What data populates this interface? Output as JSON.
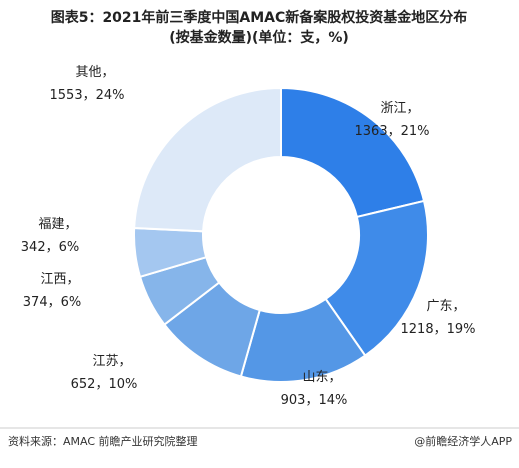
{
  "chart_data": {
    "type": "pie",
    "title": [
      "图表5：2021年前三季度中国AMAC新备案股权投资基金地区分布",
      "(按基金数量)(单位：支，%)"
    ],
    "categories": [
      "浙江，",
      "广东，",
      "山东，",
      "江苏，",
      "江西，",
      "福建，",
      "其他，"
    ],
    "values": [
      1363,
      1218,
      903,
      652,
      374,
      342,
      1553
    ],
    "value_labels": [
      "1363，21%",
      "1218，19%",
      "903，14%",
      "652，10%",
      "374，6%",
      "342，6%",
      "1553，24%"
    ],
    "colors": [
      "#2e7fe8",
      "#3f8be9",
      "#5497e6",
      "#6ea6e7",
      "#86b5ea",
      "#a4c7f0",
      "#dde9f8"
    ]
  },
  "footer": {
    "source": "资料来源：AMAC 前瞻产业研究院整理",
    "brand": "@前瞻经济学人APP"
  }
}
